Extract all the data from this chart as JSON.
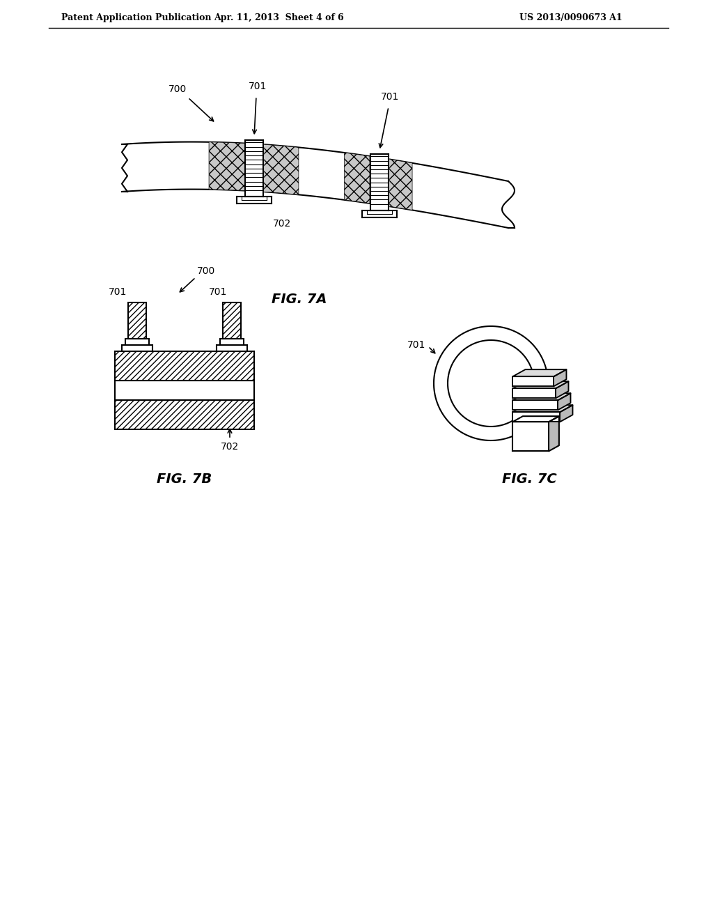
{
  "bg_color": "#ffffff",
  "line_color": "#000000",
  "header_left": "Patent Application Publication",
  "header_mid": "Apr. 11, 2013  Sheet 4 of 6",
  "header_right": "US 2013/0090673 A1",
  "fig7a_label": "FIG. 7A",
  "fig7b_label": "FIG. 7B",
  "fig7c_label": "FIG. 7C",
  "label_700_fig7a": "700",
  "label_701_fig7a_left": "701",
  "label_701_fig7a_right": "701",
  "label_702_fig7a": "702",
  "label_700_fig7b": "700",
  "label_701_fig7b_left": "701",
  "label_701_fig7b_right": "701",
  "label_702_fig7b": "702",
  "label_701_fig7c": "701"
}
